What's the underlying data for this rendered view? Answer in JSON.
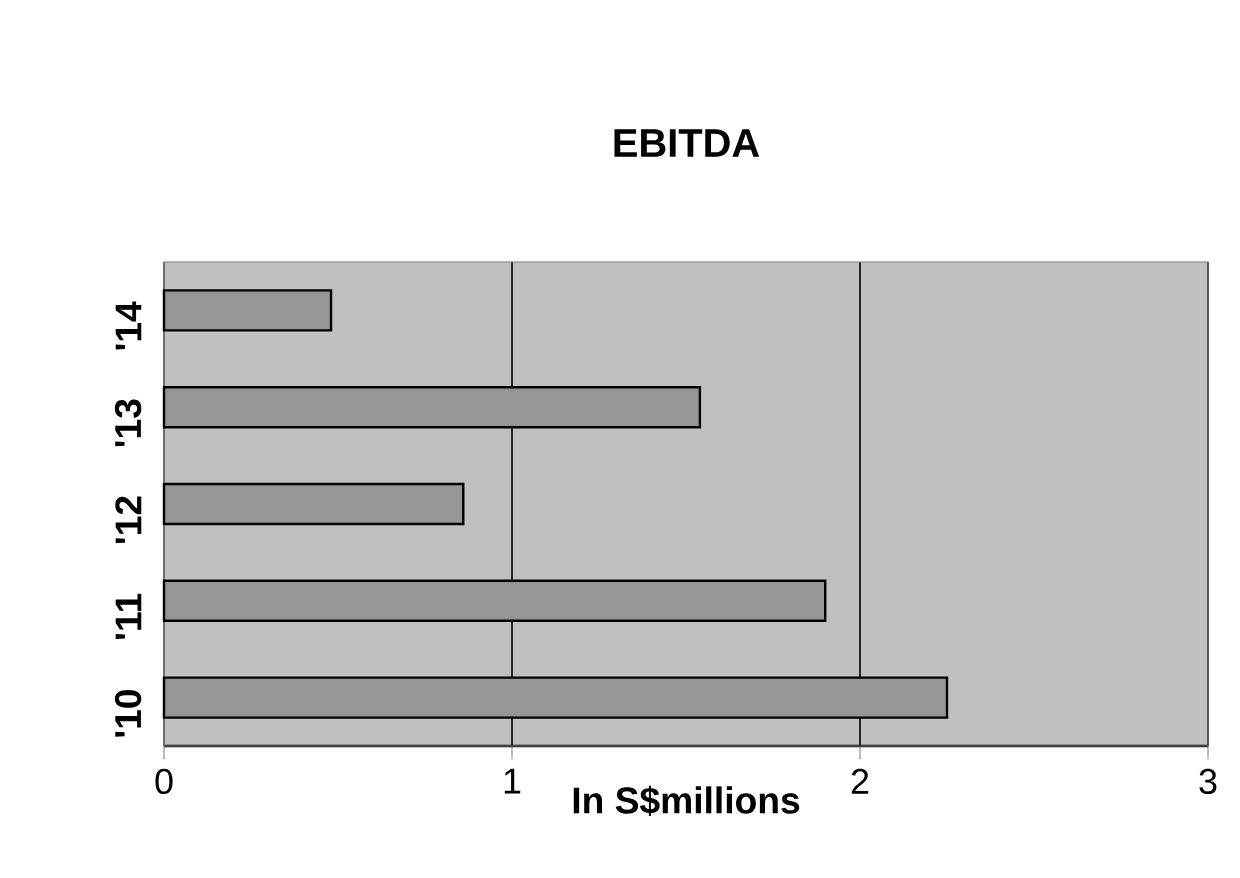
{
  "chart_data": {
    "type": "bar",
    "orientation": "horizontal",
    "title": "EBITDA",
    "xlabel": "In S$millions",
    "categories": [
      "'14",
      "'13",
      "'12",
      "'11",
      "'10"
    ],
    "values": [
      0.48,
      1.54,
      0.86,
      1.9,
      2.25
    ],
    "color": "#969696",
    "xlim": [
      0,
      3
    ],
    "xticks": [
      0,
      1,
      2,
      3
    ],
    "grid": "x"
  }
}
